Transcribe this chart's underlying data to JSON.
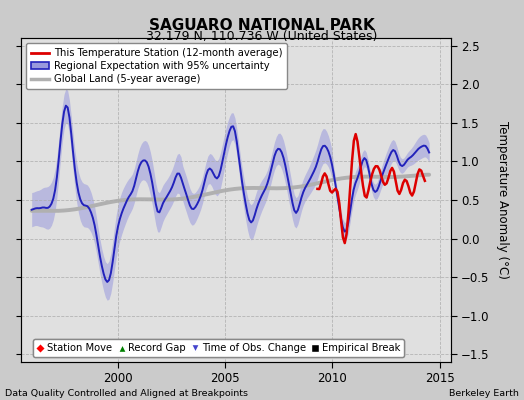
{
  "title": "SAGUARO NATIONAL PARK",
  "subtitle": "32.179 N, 110.736 W (United States)",
  "ylabel": "Temperature Anomaly (°C)",
  "xlabel_note": "Data Quality Controlled and Aligned at Breakpoints",
  "credit": "Berkeley Earth",
  "xlim": [
    1995.5,
    2015.5
  ],
  "ylim": [
    -1.6,
    2.6
  ],
  "yticks": [
    -1.5,
    -1.0,
    -0.5,
    0.0,
    0.5,
    1.0,
    1.5,
    2.0,
    2.5
  ],
  "xticks": [
    2000,
    2005,
    2010,
    2015
  ],
  "bg_color": "#cbcbcb",
  "plot_bg_color": "#e0e0e0",
  "regional_color": "#2222bb",
  "regional_fill_color": "#9999dd",
  "station_color": "#dd0000",
  "global_color": "#b0b0b0",
  "legend1_labels": [
    "This Temperature Station (12-month average)",
    "Regional Expectation with 95% uncertainty",
    "Global Land (5-year average)"
  ],
  "legend2_labels": [
    "Station Move",
    "Record Gap",
    "Time of Obs. Change",
    "Empirical Break"
  ]
}
